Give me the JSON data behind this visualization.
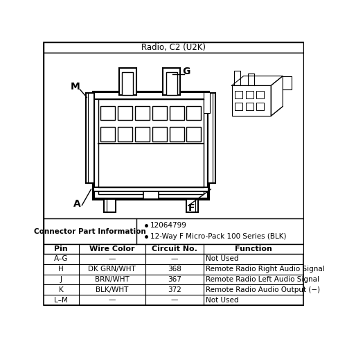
{
  "title": "Radio, C2 (U2K)",
  "connector_part_info_label": "Connector Part Information",
  "connector_part_info_bullets": [
    "12064799",
    "12-Way F Micro-Pack 100 Series (BLK)"
  ],
  "table_headers": [
    "Pin",
    "Wire Color",
    "Circuit No.",
    "Function"
  ],
  "table_rows": [
    [
      "A–G",
      "—",
      "—",
      "Not Used"
    ],
    [
      "H",
      "DK GRN/WHT",
      "368",
      "Remote Radio Right Audio Signal"
    ],
    [
      "J",
      "BRN/WHT",
      "367",
      "Remote Radio Left Audio Signal"
    ],
    [
      "K",
      "BLK/WHT",
      "372",
      "Remote Radio Audio Output (−)"
    ],
    [
      "L–M",
      "—",
      "—",
      "Not Used"
    ]
  ],
  "bg_color": "#ffffff",
  "line_color": "#000000",
  "text_color": "#000000",
  "title_fontsize": 8.5,
  "label_fontsize": 10,
  "table_fontsize": 7.5,
  "header_fontsize": 8
}
